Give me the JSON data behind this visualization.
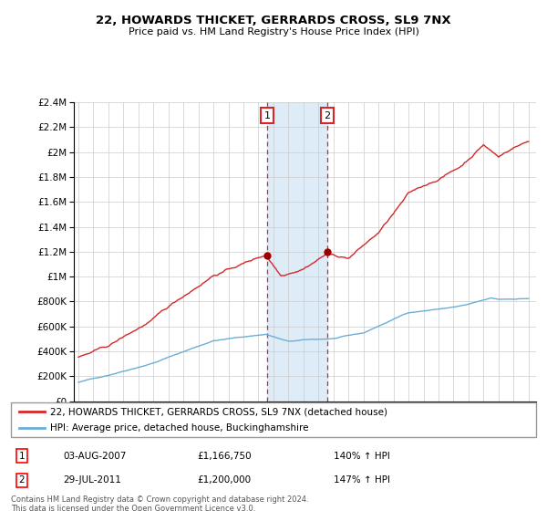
{
  "title": "22, HOWARDS THICKET, GERRARDS CROSS, SL9 7NX",
  "subtitle": "Price paid vs. HM Land Registry's House Price Index (HPI)",
  "legend_line1": "22, HOWARDS THICKET, GERRARDS CROSS, SL9 7NX (detached house)",
  "legend_line2": "HPI: Average price, detached house, Buckinghamshire",
  "annotation1_label": "1",
  "annotation1_date": "03-AUG-2007",
  "annotation1_price": "£1,166,750",
  "annotation1_hpi": "140% ↑ HPI",
  "annotation2_label": "2",
  "annotation2_date": "29-JUL-2011",
  "annotation2_price": "£1,200,000",
  "annotation2_hpi": "147% ↑ HPI",
  "footer": "Contains HM Land Registry data © Crown copyright and database right 2024.\nThis data is licensed under the Open Government Licence v3.0.",
  "hpi_color": "#6baed6",
  "price_color": "#d62728",
  "marker_color": "#9b0000",
  "shade_color": "#d6e8f5",
  "sale1_year": 2007.58,
  "sale1_price": 1166750,
  "sale2_year": 2011.57,
  "sale2_price": 1200000,
  "ylim": [
    0,
    2400000
  ],
  "xlim": [
    1994.7,
    2025.5
  ],
  "background_color": "#ffffff",
  "grid_color": "#cccccc"
}
